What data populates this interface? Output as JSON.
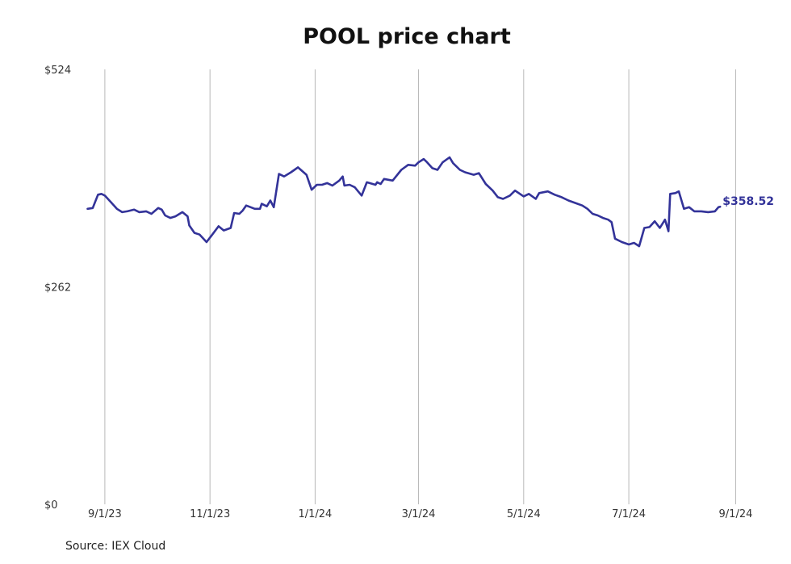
{
  "chart_data": {
    "type": "line",
    "title": "POOL price chart",
    "source": "Source: IEX Cloud",
    "color": "#333399",
    "grid": "vertical",
    "ylim": [
      0,
      524
    ],
    "y_ticks": [
      {
        "value": 0,
        "label": "$0"
      },
      {
        "value": 262,
        "label": "$262"
      },
      {
        "value": 524,
        "label": "$524"
      }
    ],
    "xlim": [
      "2023-08-18",
      "2024-09-05"
    ],
    "x_ticks": [
      {
        "date": "2023-09-01",
        "label": "9/1/23"
      },
      {
        "date": "2023-11-01",
        "label": "11/1/23"
      },
      {
        "date": "2024-01-01",
        "label": "1/1/24"
      },
      {
        "date": "2024-03-01",
        "label": "3/1/24"
      },
      {
        "date": "2024-05-01",
        "label": "5/1/24"
      },
      {
        "date": "2024-07-01",
        "label": "7/1/24"
      },
      {
        "date": "2024-09-01",
        "label": "9/1/24"
      }
    ],
    "last_value_label": "$358.52",
    "series": [
      {
        "points": [
          [
            "2023-08-22",
            356
          ],
          [
            "2023-08-25",
            357
          ],
          [
            "2023-08-28",
            373
          ],
          [
            "2023-08-30",
            374
          ],
          [
            "2023-09-01",
            372
          ],
          [
            "2023-09-05",
            363
          ],
          [
            "2023-09-08",
            356
          ],
          [
            "2023-09-11",
            352
          ],
          [
            "2023-09-14",
            353
          ],
          [
            "2023-09-18",
            355
          ],
          [
            "2023-09-21",
            352
          ],
          [
            "2023-09-25",
            353
          ],
          [
            "2023-09-28",
            350
          ],
          [
            "2023-10-02",
            357
          ],
          [
            "2023-10-04",
            355
          ],
          [
            "2023-10-06",
            348
          ],
          [
            "2023-10-09",
            345
          ],
          [
            "2023-10-12",
            347
          ],
          [
            "2023-10-16",
            352
          ],
          [
            "2023-10-19",
            347
          ],
          [
            "2023-10-20",
            336
          ],
          [
            "2023-10-23",
            327
          ],
          [
            "2023-10-26",
            325
          ],
          [
            "2023-10-30",
            316
          ],
          [
            "2023-11-02",
            324
          ],
          [
            "2023-11-06",
            335
          ],
          [
            "2023-11-09",
            330
          ],
          [
            "2023-11-13",
            333
          ],
          [
            "2023-11-15",
            351
          ],
          [
            "2023-11-18",
            350
          ],
          [
            "2023-11-20",
            354
          ],
          [
            "2023-11-22",
            360
          ],
          [
            "2023-11-27",
            356
          ],
          [
            "2023-11-30",
            356
          ],
          [
            "2023-12-01",
            362
          ],
          [
            "2023-12-04",
            359
          ],
          [
            "2023-12-06",
            366
          ],
          [
            "2023-12-08",
            358
          ],
          [
            "2023-12-11",
            398
          ],
          [
            "2023-12-14",
            395
          ],
          [
            "2023-12-18",
            400
          ],
          [
            "2023-12-20",
            403
          ],
          [
            "2023-12-22",
            406
          ],
          [
            "2023-12-27",
            397
          ],
          [
            "2023-12-30",
            379
          ],
          [
            "2024-01-02",
            385
          ],
          [
            "2024-01-05",
            385
          ],
          [
            "2024-01-08",
            387
          ],
          [
            "2024-01-11",
            384
          ],
          [
            "2024-01-15",
            390
          ],
          [
            "2024-01-17",
            395
          ],
          [
            "2024-01-18",
            384
          ],
          [
            "2024-01-21",
            385
          ],
          [
            "2024-01-24",
            382
          ],
          [
            "2024-01-28",
            372
          ],
          [
            "2024-01-31",
            388
          ],
          [
            "2024-02-05",
            385
          ],
          [
            "2024-02-06",
            388
          ],
          [
            "2024-02-08",
            386
          ],
          [
            "2024-02-10",
            392
          ],
          [
            "2024-02-15",
            390
          ],
          [
            "2024-02-20",
            403
          ],
          [
            "2024-02-24",
            409
          ],
          [
            "2024-02-28",
            408
          ],
          [
            "2024-03-01",
            412
          ],
          [
            "2024-03-04",
            416
          ],
          [
            "2024-03-06",
            412
          ],
          [
            "2024-03-09",
            405
          ],
          [
            "2024-03-12",
            403
          ],
          [
            "2024-03-15",
            412
          ],
          [
            "2024-03-19",
            418
          ],
          [
            "2024-03-21",
            411
          ],
          [
            "2024-03-25",
            403
          ],
          [
            "2024-03-28",
            400
          ],
          [
            "2024-04-02",
            397
          ],
          [
            "2024-04-05",
            399
          ],
          [
            "2024-04-09",
            386
          ],
          [
            "2024-04-13",
            378
          ],
          [
            "2024-04-16",
            370
          ],
          [
            "2024-04-19",
            368
          ],
          [
            "2024-04-23",
            372
          ],
          [
            "2024-04-26",
            378
          ],
          [
            "2024-05-01",
            371
          ],
          [
            "2024-05-04",
            374
          ],
          [
            "2024-05-08",
            368
          ],
          [
            "2024-05-10",
            375
          ],
          [
            "2024-05-15",
            377
          ],
          [
            "2024-05-19",
            373
          ],
          [
            "2024-05-23",
            370
          ],
          [
            "2024-05-27",
            366
          ],
          [
            "2024-05-31",
            363
          ],
          [
            "2024-06-04",
            360
          ],
          [
            "2024-06-07",
            356
          ],
          [
            "2024-06-10",
            350
          ],
          [
            "2024-06-13",
            348
          ],
          [
            "2024-06-16",
            345
          ],
          [
            "2024-06-19",
            343
          ],
          [
            "2024-06-21",
            340
          ],
          [
            "2024-06-23",
            320
          ],
          [
            "2024-06-27",
            316
          ],
          [
            "2024-07-01",
            313
          ],
          [
            "2024-07-04",
            315
          ],
          [
            "2024-07-07",
            311
          ],
          [
            "2024-07-10",
            333
          ],
          [
            "2024-07-13",
            334
          ],
          [
            "2024-07-16",
            341
          ],
          [
            "2024-07-19",
            333
          ],
          [
            "2024-07-22",
            343
          ],
          [
            "2024-07-24",
            329
          ],
          [
            "2024-07-25",
            374
          ],
          [
            "2024-07-28",
            375
          ],
          [
            "2024-07-30",
            377
          ],
          [
            "2024-08-02",
            356
          ],
          [
            "2024-08-05",
            358
          ],
          [
            "2024-08-08",
            353
          ],
          [
            "2024-08-12",
            353
          ],
          [
            "2024-08-16",
            352
          ],
          [
            "2024-08-20",
            353
          ],
          [
            "2024-08-22",
            358
          ],
          [
            "2024-08-23",
            358.52
          ]
        ]
      }
    ]
  }
}
